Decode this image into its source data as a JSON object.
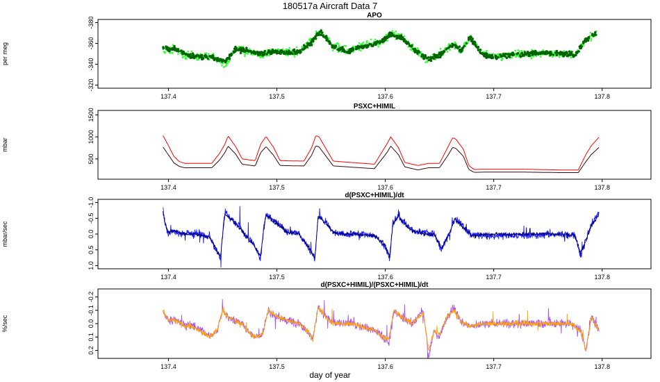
{
  "figure": {
    "title": "180517a   Aircraft Data 7",
    "xlabel": "day of year"
  },
  "colors": {
    "apo_light": "#33ff33",
    "apo_dark": "#006400",
    "psxc_red": "#ff0000",
    "psxc_dark": "#3a0a0a",
    "dpsxc_blue": "#1a1aff",
    "dpsxc_navy": "#000080",
    "rel_purple": "#a64dff",
    "rel_orange": "#ffa500"
  },
  "chart_data": [
    {
      "type": "scatter",
      "title": "APO",
      "xlabel": "",
      "ylabel": "per meg",
      "xlim": [
        137.335,
        137.845
      ],
      "ylim": [
        -383,
        -317
      ],
      "y_reversed": true,
      "xticks": [
        "137.4",
        "137.5",
        "137.6",
        "137.7",
        "137.8"
      ],
      "yticks": [
        "-320",
        "-340",
        "-360",
        "-380"
      ],
      "series": [
        {
          "color": "apo_light",
          "x": [
            137.395,
            137.4,
            137.405,
            137.413,
            137.425,
            137.44,
            137.452,
            137.462,
            137.473,
            137.485,
            137.497,
            137.51,
            137.522,
            137.532,
            137.54,
            137.552,
            137.565,
            137.575,
            137.585,
            137.598,
            137.605,
            137.615,
            137.628,
            137.64,
            137.652,
            137.663,
            137.67,
            137.678,
            137.69,
            137.702,
            137.715,
            137.73,
            137.745,
            137.76,
            137.775,
            137.785,
            137.795
          ],
          "y": [
            -355,
            -352,
            -357,
            -350,
            -347,
            -348,
            -338,
            -355,
            -352,
            -349,
            -352,
            -352,
            -352,
            -362,
            -372,
            -357,
            -353,
            -357,
            -359,
            -362,
            -370,
            -366,
            -353,
            -344,
            -351,
            -360,
            -352,
            -367,
            -350,
            -348,
            -349,
            -350,
            -350,
            -350,
            -349,
            -364,
            -370
          ]
        },
        {
          "color": "apo_dark",
          "x": [
            137.395,
            137.4,
            137.405,
            137.413,
            137.425,
            137.44,
            137.452,
            137.462,
            137.473,
            137.485,
            137.497,
            137.51,
            137.522,
            137.532,
            137.54,
            137.552,
            137.565,
            137.575,
            137.585,
            137.598,
            137.605,
            137.615,
            137.628,
            137.64,
            137.652,
            137.663,
            137.67,
            137.678,
            137.69,
            137.702,
            137.715,
            137.73,
            137.745,
            137.76,
            137.775,
            137.785,
            137.795
          ],
          "y": [
            -356,
            -354,
            -355,
            -351,
            -347,
            -347,
            -342,
            -354,
            -353,
            -350,
            -352,
            -351,
            -353,
            -361,
            -371,
            -357,
            -352,
            -356,
            -358,
            -363,
            -369,
            -365,
            -353,
            -345,
            -350,
            -359,
            -353,
            -366,
            -349,
            -347,
            -349,
            -350,
            -351,
            -350,
            -349,
            -364,
            -370
          ]
        }
      ]
    },
    {
      "type": "line",
      "title": "PSXC+HIMIL",
      "xlabel": "",
      "ylabel": "mbar",
      "xlim": [
        137.335,
        137.845
      ],
      "ylim": [
        40,
        1600
      ],
      "xticks": [
        "137.4",
        "137.5",
        "137.6",
        "137.7",
        "137.8"
      ],
      "yticks": [
        "500",
        "1000",
        "1500"
      ],
      "series": [
        {
          "color": "psxc_red",
          "x": [
            137.395,
            137.4,
            137.405,
            137.41,
            137.415,
            137.44,
            137.447,
            137.452,
            137.455,
            137.462,
            137.468,
            137.48,
            137.485,
            137.49,
            137.497,
            137.503,
            137.525,
            137.532,
            137.536,
            137.539,
            137.546,
            137.552,
            137.59,
            137.597,
            137.602,
            137.605,
            137.612,
            137.618,
            137.63,
            137.64,
            137.65,
            137.658,
            137.662,
            137.665,
            137.672,
            137.677,
            137.682,
            137.69,
            137.73,
            137.76,
            137.778,
            137.785,
            137.79,
            137.797
          ],
          "y": [
            1030,
            800,
            560,
            440,
            400,
            400,
            620,
            830,
            1020,
            780,
            500,
            460,
            830,
            1010,
            760,
            460,
            450,
            750,
            1030,
            1000,
            700,
            450,
            380,
            660,
            860,
            1000,
            760,
            420,
            350,
            400,
            400,
            780,
            980,
            950,
            720,
            350,
            260,
            265,
            265,
            250,
            250,
            600,
            800,
            990
          ]
        },
        {
          "color": "psxc_dark",
          "x": [
            137.395,
            137.4,
            137.405,
            137.41,
            137.415,
            137.44,
            137.447,
            137.452,
            137.455,
            137.462,
            137.468,
            137.48,
            137.485,
            137.49,
            137.497,
            137.503,
            137.525,
            137.532,
            137.536,
            137.539,
            137.546,
            137.552,
            137.59,
            137.597,
            137.602,
            137.605,
            137.612,
            137.618,
            137.63,
            137.64,
            137.65,
            137.658,
            137.662,
            137.665,
            137.672,
            137.677,
            137.682,
            137.69,
            137.73,
            137.76,
            137.778,
            137.785,
            137.79,
            137.797
          ],
          "y": [
            770,
            590,
            410,
            330,
            300,
            300,
            470,
            640,
            790,
            610,
            380,
            340,
            640,
            780,
            580,
            350,
            340,
            580,
            800,
            770,
            540,
            340,
            280,
            500,
            660,
            790,
            600,
            320,
            250,
            300,
            300,
            590,
            760,
            740,
            560,
            260,
            195,
            200,
            200,
            190,
            190,
            440,
            600,
            760
          ]
        }
      ]
    },
    {
      "type": "line",
      "title": "d(PSXC+HIMIL)/dt",
      "xlabel": "",
      "ylabel": "mbar/sec",
      "xlim": [
        137.335,
        137.845
      ],
      "ylim": [
        -1.1,
        1.1
      ],
      "y_reversed": true,
      "xticks": [
        "137.4",
        "137.5",
        "137.6",
        "137.7",
        "137.8"
      ],
      "yticks": [
        "-1.0",
        "-0.5",
        "0.0",
        "0.5",
        "1.0"
      ],
      "series": [
        {
          "color": "dpsxc_blue",
          "x": [
            137.395,
            137.397,
            137.4,
            137.405,
            137.412,
            137.425,
            137.438,
            137.444,
            137.448,
            137.45,
            137.452,
            137.455,
            137.46,
            137.466,
            137.47,
            137.478,
            137.485,
            137.488,
            137.49,
            137.495,
            137.503,
            137.51,
            137.52,
            137.53,
            137.535,
            137.538,
            137.545,
            137.552,
            137.56,
            137.575,
            137.59,
            137.6,
            137.604,
            137.607,
            137.612,
            137.618,
            137.625,
            137.635,
            137.645,
            137.652,
            137.66,
            137.664,
            137.668,
            137.675,
            137.68,
            137.7,
            137.73,
            137.76,
            137.775,
            137.78,
            137.79,
            137.797
          ],
          "y": [
            -0.8,
            -0.3,
            0.0,
            -0.1,
            0.0,
            -0.05,
            0.1,
            0.5,
            0.8,
            0.0,
            -0.7,
            -0.6,
            -0.4,
            -0.25,
            0.0,
            0.3,
            0.8,
            -0.2,
            -0.65,
            -0.5,
            -0.3,
            -0.05,
            -0.05,
            0.5,
            0.8,
            -0.6,
            -0.4,
            -0.05,
            0.0,
            0.0,
            0.05,
            0.4,
            0.8,
            -0.35,
            -0.6,
            -0.35,
            -0.1,
            -0.05,
            0.0,
            0.5,
            -0.1,
            -0.5,
            -0.4,
            -0.1,
            0.05,
            0.05,
            0.05,
            0.0,
            0.05,
            0.7,
            -0.3,
            -0.7
          ]
        },
        {
          "color": "dpsxc_navy",
          "x": [
            137.395,
            137.397,
            137.4,
            137.405,
            137.412,
            137.425,
            137.438,
            137.444,
            137.448,
            137.45,
            137.452,
            137.455,
            137.46,
            137.466,
            137.47,
            137.478,
            137.485,
            137.488,
            137.49,
            137.495,
            137.503,
            137.51,
            137.52,
            137.53,
            137.535,
            137.538,
            137.545,
            137.552,
            137.56,
            137.575,
            137.59,
            137.6,
            137.604,
            137.607,
            137.612,
            137.618,
            137.625,
            137.635,
            137.645,
            137.652,
            137.66,
            137.664,
            137.668,
            137.675,
            137.68,
            137.7,
            137.73,
            137.76,
            137.775,
            137.78,
            137.79,
            137.797
          ],
          "y": [
            -0.7,
            -0.3,
            -0.05,
            -0.1,
            0.0,
            0.0,
            0.1,
            0.45,
            0.75,
            0.0,
            -0.6,
            -0.55,
            -0.4,
            -0.2,
            0.0,
            0.3,
            0.7,
            -0.2,
            -0.6,
            -0.45,
            -0.25,
            -0.05,
            0.0,
            0.45,
            0.75,
            -0.55,
            -0.35,
            -0.05,
            0.0,
            0.0,
            0.05,
            0.35,
            0.7,
            -0.3,
            -0.55,
            -0.3,
            -0.1,
            0.0,
            0.0,
            0.45,
            -0.1,
            -0.45,
            -0.35,
            -0.1,
            0.05,
            0.0,
            0.0,
            0.0,
            0.05,
            0.6,
            -0.25,
            -0.6
          ]
        }
      ]
    },
    {
      "type": "line",
      "title": "d(PSXC+HIMIL)/(PSXC+HIMIL)/dt",
      "xlabel": "day of year",
      "ylabel": "%/sec",
      "xlim": [
        137.335,
        137.845
      ],
      "ylim": [
        -0.26,
        0.26
      ],
      "y_reversed": true,
      "xticks": [
        "137.4",
        "137.5",
        "137.6",
        "137.7",
        "137.8"
      ],
      "yticks": [
        "-0.2",
        "-0.1",
        "0.0",
        "0.1",
        "0.2"
      ],
      "series": [
        {
          "color": "rel_purple",
          "x": [
            137.395,
            137.4,
            137.405,
            137.412,
            137.425,
            137.438,
            137.445,
            137.45,
            137.455,
            137.462,
            137.468,
            137.472,
            137.48,
            137.487,
            137.492,
            137.5,
            137.51,
            137.52,
            137.528,
            137.533,
            137.538,
            137.545,
            137.552,
            137.57,
            137.59,
            137.598,
            137.603,
            137.608,
            137.615,
            137.625,
            137.635,
            137.64,
            137.645,
            137.65,
            137.657,
            137.663,
            137.67,
            137.678,
            137.69,
            137.71,
            137.74,
            137.77,
            137.78,
            137.785,
            137.79,
            137.797
          ],
          "y": [
            -0.1,
            -0.02,
            -0.03,
            0.0,
            0.02,
            0.1,
            0.05,
            -0.1,
            -0.05,
            -0.02,
            0.0,
            0.05,
            0.1,
            0.08,
            -0.1,
            -0.05,
            -0.03,
            0.0,
            0.05,
            0.12,
            -0.12,
            -0.05,
            0.0,
            0.0,
            0.05,
            0.1,
            0.15,
            -0.1,
            -0.05,
            0.0,
            -0.1,
            0.25,
            0.05,
            0.1,
            -0.05,
            -0.12,
            -0.02,
            0.02,
            0.0,
            0.0,
            0.0,
            0.0,
            0.05,
            0.2,
            -0.05,
            0.05
          ]
        },
        {
          "color": "rel_orange",
          "x": [
            137.395,
            137.4,
            137.405,
            137.412,
            137.425,
            137.438,
            137.445,
            137.45,
            137.455,
            137.462,
            137.468,
            137.472,
            137.48,
            137.487,
            137.492,
            137.5,
            137.51,
            137.52,
            137.528,
            137.533,
            137.538,
            137.545,
            137.552,
            137.57,
            137.59,
            137.598,
            137.603,
            137.608,
            137.615,
            137.625,
            137.635,
            137.64,
            137.645,
            137.65,
            137.657,
            137.663,
            137.67,
            137.678,
            137.69,
            137.71,
            137.74,
            137.77,
            137.78,
            137.785,
            137.79,
            137.797
          ],
          "y": [
            -0.1,
            -0.02,
            -0.03,
            0.0,
            0.03,
            0.1,
            0.05,
            -0.1,
            -0.05,
            -0.02,
            0.0,
            0.05,
            0.1,
            0.08,
            -0.1,
            -0.05,
            -0.03,
            0.0,
            0.05,
            0.12,
            -0.12,
            -0.05,
            0.0,
            0.0,
            0.05,
            0.1,
            0.12,
            -0.1,
            -0.05,
            0.0,
            -0.08,
            0.2,
            0.05,
            0.08,
            -0.05,
            -0.1,
            -0.02,
            0.02,
            0.0,
            0.0,
            0.0,
            0.0,
            0.05,
            0.2,
            -0.05,
            0.05
          ]
        }
      ]
    }
  ]
}
